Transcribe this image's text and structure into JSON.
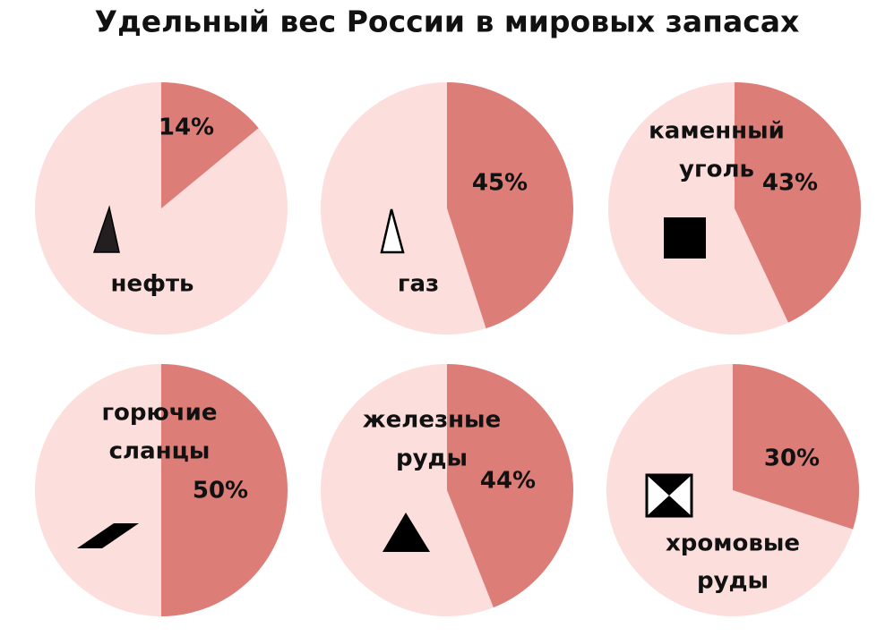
{
  "title": "Удельный вес России в мировых запасах",
  "chart_data": [
    {
      "type": "pie",
      "name": [
        "нефть"
      ],
      "values": [
        14
      ],
      "value_labels": [
        "14%"
      ],
      "colors": [
        "#dd7d78",
        "#fcdedd"
      ]
    },
    {
      "type": "pie",
      "name": [
        "газ"
      ],
      "values": [
        45
      ],
      "value_labels": [
        "45%"
      ],
      "colors": [
        "#dd7d78",
        "#fcdedd"
      ]
    },
    {
      "type": "pie",
      "name": [
        "каменный",
        "уголь"
      ],
      "values": [
        43
      ],
      "value_labels": [
        "43%"
      ],
      "colors": [
        "#dd7d78",
        "#fcdedd"
      ]
    },
    {
      "type": "pie",
      "name": [
        "горючие",
        "сланцы"
      ],
      "values": [
        50
      ],
      "value_labels": [
        "50%"
      ],
      "colors": [
        "#dd7d78",
        "#fcdedd"
      ]
    },
    {
      "type": "pie",
      "name": [
        "железные",
        "руды"
      ],
      "values": [
        44
      ],
      "value_labels": [
        "44%"
      ],
      "colors": [
        "#dd7d78",
        "#fcdedd"
      ]
    },
    {
      "type": "pie",
      "name": [
        "хромовые",
        "руды"
      ],
      "values": [
        30
      ],
      "value_labels": [
        "30%"
      ],
      "colors": [
        "#dd7d78",
        "#fcdedd"
      ]
    }
  ]
}
